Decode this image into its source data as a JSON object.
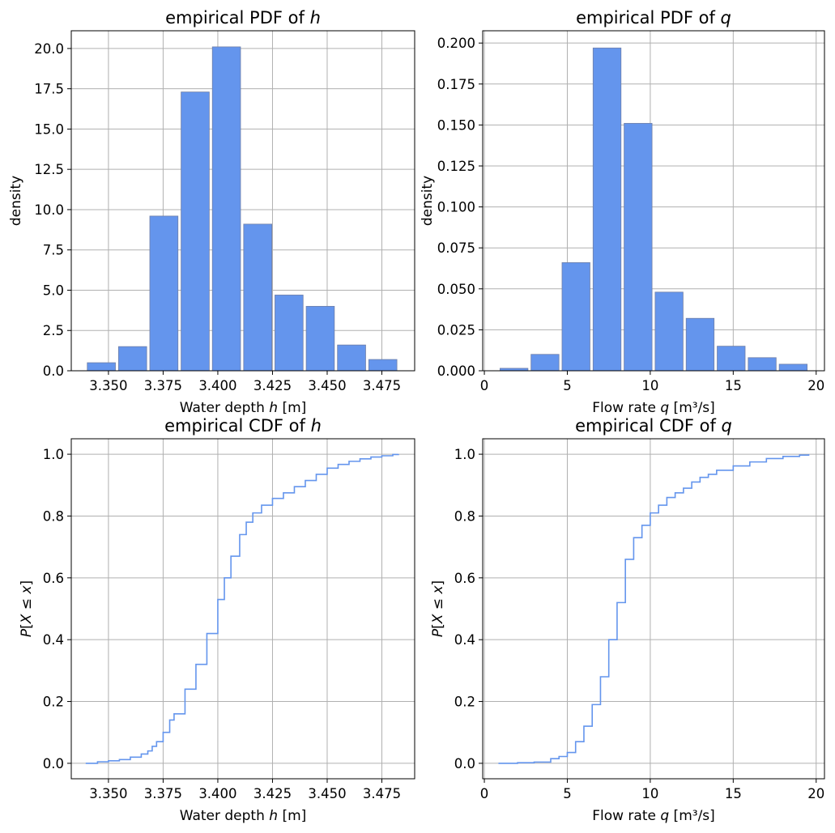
{
  "colors": {
    "bar": "#6495ed",
    "line": "#6495ed",
    "grid": "#b0b0b0"
  },
  "chart_data": [
    {
      "type": "bar",
      "title": {
        "pre": "empirical PDF of ",
        "var": "h"
      },
      "xlabel": {
        "pre": "Water depth ",
        "var": "h",
        "post": " [m]"
      },
      "ylabel": "density",
      "xlim": [
        3.333,
        3.49
      ],
      "ylim": [
        0,
        21.1
      ],
      "xticks": [
        3.35,
        3.375,
        3.4,
        3.425,
        3.45,
        3.475
      ],
      "xtick_labels": [
        "3.350",
        "3.375",
        "3.400",
        "3.425",
        "3.450",
        "3.475"
      ],
      "yticks": [
        0,
        2.5,
        5,
        7.5,
        10,
        12.5,
        15,
        17.5,
        20
      ],
      "ytick_labels": [
        "0.0",
        "2.5",
        "5.0",
        "7.5",
        "10.0",
        "12.5",
        "15.0",
        "17.5",
        "20.0"
      ],
      "bin_edges": [
        3.3396,
        3.3539,
        3.3682,
        3.3825,
        3.3968,
        3.4111,
        3.4254,
        3.4397,
        3.454,
        3.4683,
        3.4826
      ],
      "values": [
        0.5,
        1.5,
        9.6,
        17.3,
        20.1,
        9.1,
        4.7,
        4.0,
        1.6,
        0.7
      ]
    },
    {
      "type": "bar",
      "title": {
        "pre": "empirical PDF of ",
        "var": "q"
      },
      "xlabel": {
        "pre": "Flow rate ",
        "var": "q",
        "post": " [m³/s]"
      },
      "ylabel": "density",
      "xlim": [
        -0.1,
        20.5
      ],
      "ylim": [
        0,
        0.2075
      ],
      "xticks": [
        0,
        5,
        10,
        15,
        20
      ],
      "xtick_labels": [
        "0",
        "5",
        "10",
        "15",
        "20"
      ],
      "yticks": [
        0,
        0.025,
        0.05,
        0.075,
        0.1,
        0.125,
        0.15,
        0.175,
        0.2
      ],
      "ytick_labels": [
        "0.000",
        "0.025",
        "0.050",
        "0.075",
        "0.100",
        "0.125",
        "0.150",
        "0.175",
        "0.200"
      ],
      "bin_edges": [
        0.85,
        2.72,
        4.59,
        6.46,
        8.33,
        10.2,
        12.07,
        13.94,
        15.81,
        17.68,
        19.55
      ],
      "values": [
        0.0015,
        0.01,
        0.066,
        0.197,
        0.151,
        0.048,
        0.032,
        0.015,
        0.008,
        0.004
      ]
    },
    {
      "type": "line",
      "step": true,
      "title": {
        "pre": "empirical CDF of ",
        "var": "h"
      },
      "xlabel": {
        "pre": "Water depth ",
        "var": "h",
        "post": " [m]"
      },
      "ylabel": "P[X ≤ x]",
      "xlim": [
        3.333,
        3.49
      ],
      "ylim": [
        -0.05,
        1.05
      ],
      "xticks": [
        3.35,
        3.375,
        3.4,
        3.425,
        3.45,
        3.475
      ],
      "xtick_labels": [
        "3.350",
        "3.375",
        "3.400",
        "3.425",
        "3.450",
        "3.475"
      ],
      "yticks": [
        0,
        0.2,
        0.4,
        0.6,
        0.8,
        1.0
      ],
      "ytick_labels": [
        "0.0",
        "0.2",
        "0.4",
        "0.6",
        "0.8",
        "1.0"
      ],
      "x": [
        3.3396,
        3.345,
        3.35,
        3.355,
        3.36,
        3.365,
        3.368,
        3.37,
        3.372,
        3.375,
        3.378,
        3.38,
        3.385,
        3.39,
        3.395,
        3.4,
        3.403,
        3.406,
        3.41,
        3.413,
        3.416,
        3.42,
        3.425,
        3.43,
        3.435,
        3.44,
        3.445,
        3.45,
        3.455,
        3.46,
        3.465,
        3.47,
        3.475,
        3.48,
        3.4826
      ],
      "y": [
        0.0,
        0.005,
        0.008,
        0.012,
        0.02,
        0.03,
        0.04,
        0.055,
        0.07,
        0.1,
        0.14,
        0.16,
        0.24,
        0.32,
        0.42,
        0.53,
        0.6,
        0.67,
        0.74,
        0.78,
        0.81,
        0.835,
        0.857,
        0.875,
        0.895,
        0.915,
        0.935,
        0.955,
        0.967,
        0.977,
        0.985,
        0.991,
        0.995,
        0.999,
        1.0
      ]
    },
    {
      "type": "line",
      "step": true,
      "title": {
        "pre": "empirical CDF of ",
        "var": "q"
      },
      "xlabel": {
        "pre": "Flow rate ",
        "var": "q",
        "post": " [m³/s]"
      },
      "ylabel": "P[X ≤ x]",
      "xlim": [
        -0.1,
        20.5
      ],
      "ylim": [
        -0.05,
        1.05
      ],
      "xticks": [
        0,
        5,
        10,
        15,
        20
      ],
      "xtick_labels": [
        "0",
        "5",
        "10",
        "15",
        "20"
      ],
      "yticks": [
        0,
        0.2,
        0.4,
        0.6,
        0.8,
        1.0
      ],
      "ytick_labels": [
        "0.0",
        "0.2",
        "0.4",
        "0.6",
        "0.8",
        "1.0"
      ],
      "x": [
        0.85,
        2,
        3,
        4,
        4.5,
        5,
        5.5,
        6,
        6.5,
        7,
        7.5,
        8,
        8.5,
        9,
        9.5,
        10,
        10.5,
        11,
        11.5,
        12,
        12.5,
        13,
        13.5,
        14,
        15,
        16,
        17,
        18,
        19,
        19.55
      ],
      "y": [
        0.0,
        0.002,
        0.004,
        0.015,
        0.022,
        0.035,
        0.07,
        0.12,
        0.19,
        0.28,
        0.4,
        0.52,
        0.66,
        0.73,
        0.77,
        0.81,
        0.835,
        0.86,
        0.875,
        0.89,
        0.91,
        0.925,
        0.935,
        0.948,
        0.962,
        0.975,
        0.986,
        0.993,
        0.997,
        1.0
      ]
    }
  ]
}
